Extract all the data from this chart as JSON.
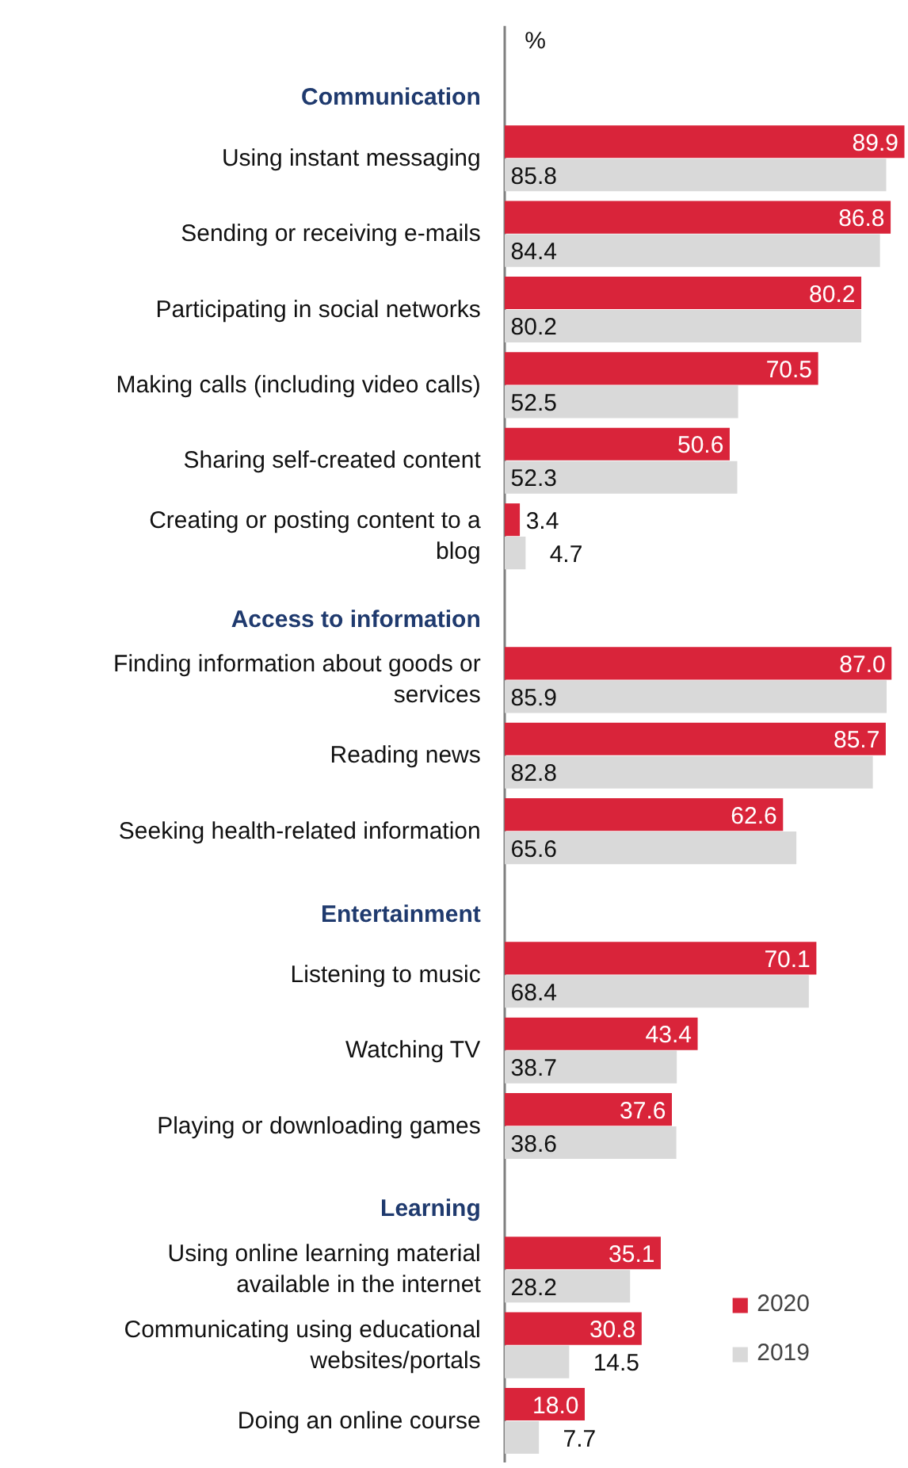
{
  "chart_data": {
    "type": "bar",
    "orientation": "horizontal",
    "xlabel": "%",
    "categories": [
      "Communication",
      "Using instant messaging",
      "Sending or receiving e-mails",
      "Participating in social networks",
      "Making calls (including video calls)",
      "Sharing self-created content",
      "Creating or posting content to a blog",
      "Access to information",
      "Finding information about goods or services",
      "Reading news",
      "Seeking health-related information",
      "Entertainment",
      "Listening to music",
      "Watching TV",
      "Playing or downloading games",
      "Learning",
      "Using online learning material available in the internet",
      "Communicating using educational websites/portals",
      "Doing an online course"
    ],
    "series": [
      {
        "name": "2020",
        "color": "#d9243a",
        "values": [
          null,
          89.9,
          86.8,
          80.2,
          70.5,
          50.6,
          3.4,
          null,
          87.0,
          85.7,
          62.6,
          null,
          70.1,
          43.4,
          37.6,
          null,
          35.1,
          30.8,
          18.0
        ],
        "value_labels": [
          null,
          "89.9",
          "86.8",
          "80.2",
          "70.5",
          "50.6",
          "3.4",
          null,
          "87.0",
          "85.7",
          "62.6",
          null,
          "70.1",
          "43.4",
          "37.6",
          null,
          "35.1",
          "30.8",
          "18.0"
        ]
      },
      {
        "name": "2019",
        "color": "#d9d9d9",
        "values": [
          null,
          85.8,
          84.4,
          80.2,
          52.5,
          52.3,
          4.7,
          null,
          85.9,
          82.8,
          65.6,
          null,
          68.4,
          38.7,
          38.6,
          null,
          28.2,
          14.5,
          7.7
        ],
        "value_labels": [
          null,
          "85.8",
          "84.4",
          "80.2",
          "52.5",
          "52.3",
          "4.7",
          null,
          "85.9",
          "82.8",
          "65.6",
          null,
          "68.4",
          "38.7",
          "38.6",
          null,
          "28.2",
          "14.5",
          "7.7"
        ]
      }
    ],
    "legend": "bottom right",
    "grid": false
  }
}
